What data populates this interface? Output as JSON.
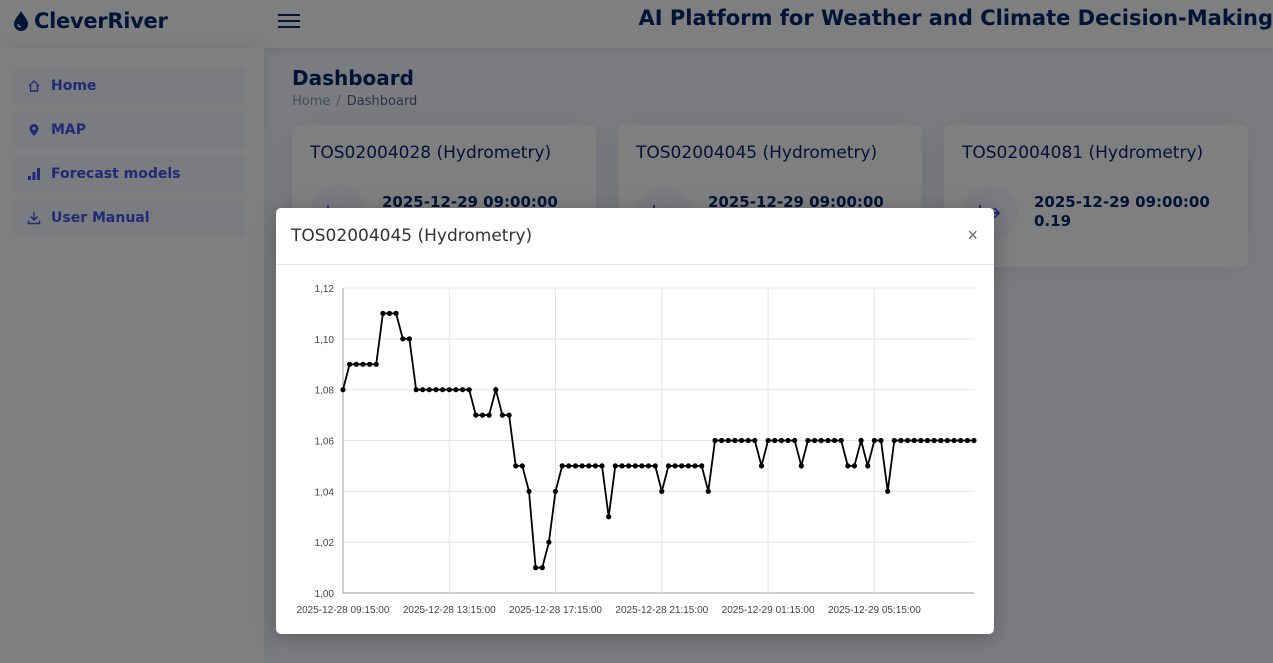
{
  "app": {
    "logo_text": "CleverRiver",
    "platform_title": "AI Platform for Weather and Climate Decision-Making"
  },
  "sidebar": {
    "items": [
      {
        "label": "Home",
        "icon": "home-icon"
      },
      {
        "label": "MAP",
        "icon": "map-pin-icon"
      },
      {
        "label": "Forecast models",
        "icon": "bar-chart-icon"
      },
      {
        "label": "User Manual",
        "icon": "download-icon"
      }
    ]
  },
  "page": {
    "title": "Dashboard",
    "breadcrumb": [
      "Home",
      "Dashboard"
    ]
  },
  "cards": [
    {
      "title": "TOS02004028 (Hydrometry)",
      "date": "2025-12-29 09:00:00",
      "value": ""
    },
    {
      "title": "TOS02004045 (Hydrometry)",
      "date": "2025-12-29 09:00:00",
      "value": ""
    },
    {
      "title": "TOS02004081 (Hydrometry)",
      "date": "2025-12-29 09:00:00",
      "value": "0.19"
    }
  ],
  "modal": {
    "title": "TOS02004045 (Hydrometry)",
    "close_label": "×"
  },
  "colors": {
    "primary": "#012970",
    "accent": "#4154f1",
    "line": "#000000",
    "grid": "#e5e5e5"
  },
  "chart_data": {
    "type": "line",
    "title": "",
    "xlabel": "",
    "ylabel": "",
    "ylim": [
      1.0,
      1.12
    ],
    "y_ticks": [
      "1,00",
      "1,02",
      "1,04",
      "1,06",
      "1,08",
      "1,10",
      "1,12"
    ],
    "x_tick_labels": [
      "2025-12-28 09:15:00",
      "2025-12-28 13:15:00",
      "2025-12-28 17:15:00",
      "2025-12-28 21:15:00",
      "2025-12-29 01:15:00",
      "2025-12-29 05:15:00"
    ],
    "x_start": "2025-12-28 09:15:00",
    "x_interval_minutes": 15,
    "grid": true,
    "legend": "none",
    "series": [
      {
        "values": [
          1.08,
          1.09,
          1.09,
          1.09,
          1.09,
          1.09,
          1.11,
          1.11,
          1.11,
          1.1,
          1.1,
          1.08,
          1.08,
          1.08,
          1.08,
          1.08,
          1.08,
          1.08,
          1.08,
          1.08,
          1.07,
          1.07,
          1.07,
          1.08,
          1.07,
          1.07,
          1.05,
          1.05,
          1.04,
          1.01,
          1.01,
          1.02,
          1.04,
          1.05,
          1.05,
          1.05,
          1.05,
          1.05,
          1.05,
          1.05,
          1.03,
          1.05,
          1.05,
          1.05,
          1.05,
          1.05,
          1.05,
          1.05,
          1.04,
          1.05,
          1.05,
          1.05,
          1.05,
          1.05,
          1.05,
          1.04,
          1.06,
          1.06,
          1.06,
          1.06,
          1.06,
          1.06,
          1.06,
          1.05,
          1.06,
          1.06,
          1.06,
          1.06,
          1.06,
          1.05,
          1.06,
          1.06,
          1.06,
          1.06,
          1.06,
          1.06,
          1.05,
          1.05,
          1.06,
          1.05,
          1.06,
          1.06,
          1.04,
          1.06,
          1.06,
          1.06,
          1.06,
          1.06,
          1.06,
          1.06,
          1.06,
          1.06,
          1.06,
          1.06,
          1.06,
          1.06
        ]
      }
    ]
  }
}
